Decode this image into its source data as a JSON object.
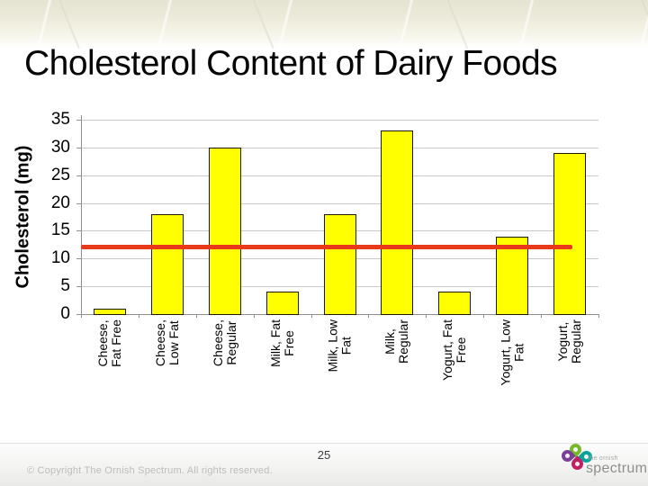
{
  "slide": {
    "title": "Cholesterol Content of Dairy Foods",
    "page_number": "25",
    "copyright": "© Copyright The Ornish Spectrum. All rights reserved.",
    "logo": {
      "brand_small": "the ornish",
      "brand_large": "spectrum"
    }
  },
  "chart_data": {
    "type": "bar",
    "title": "",
    "xlabel": "",
    "ylabel": "Cholesterol (mg)",
    "ylim": [
      0,
      35
    ],
    "yticks": [
      0,
      5,
      10,
      15,
      20,
      25,
      30,
      35
    ],
    "grid": true,
    "legend": "none",
    "categories": [
      "Cheese,\nFat Free",
      "Cheese,\nLow Fat",
      "Cheese,\nRegular",
      "Milk, Fat\nFree",
      "Milk, Low\nFat",
      "Milk,\nRegular",
      "Yogurt, Fat\nFree",
      "Yogurt, Low\nFat",
      "Yogurt,\nRegular"
    ],
    "values": [
      1,
      18,
      30,
      4,
      18,
      33,
      4,
      14,
      29
    ],
    "reference_line": {
      "value": 12,
      "color": "#e8391a"
    },
    "bar_color": "#ffff00",
    "bar_border_color": "#1c1c00",
    "gridline_color": "#c9c9c9",
    "axis_color": "#8f8f8f"
  }
}
